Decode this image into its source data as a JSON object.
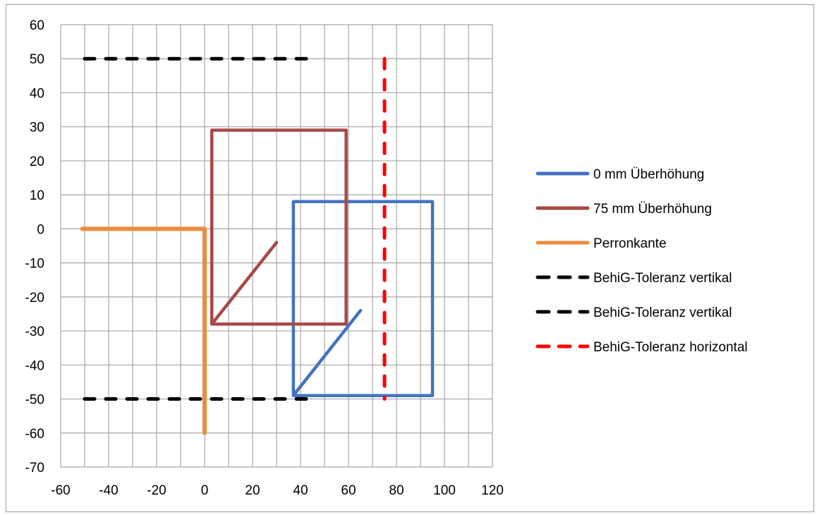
{
  "chart_data": {
    "type": "line",
    "title": "",
    "xlabel": "",
    "ylabel": "",
    "xlim": [
      -60,
      120
    ],
    "ylim": [
      -70,
      60
    ],
    "x_ticks": [
      -60,
      -40,
      -20,
      0,
      20,
      40,
      60,
      80,
      100,
      120
    ],
    "y_ticks": [
      60,
      50,
      40,
      30,
      20,
      10,
      0,
      -10,
      -20,
      -30,
      -40,
      -50,
      -60,
      -70
    ],
    "x_tick_labels": [
      "-60",
      "-40",
      "-20",
      "0",
      "20",
      "40",
      "60",
      "80",
      "100",
      "120"
    ],
    "y_tick_labels": [
      "60",
      "50",
      "40",
      "30",
      "20",
      "10",
      "0",
      "-10",
      "-20",
      "-30",
      "-40",
      "-50",
      "-60",
      "-70"
    ],
    "x_grid_step": 10,
    "y_grid_step": 10,
    "grid": true,
    "legend_position": "right",
    "series": [
      {
        "name": "0 mm Überhöhung",
        "color": "#4472c4",
        "dash": "solid",
        "points": [
          [
            65,
            -24
          ],
          [
            37,
            -49
          ],
          [
            37,
            8
          ],
          [
            95,
            8
          ],
          [
            95,
            -49
          ],
          [
            37,
            -49
          ]
        ]
      },
      {
        "name": "75 mm Überhöhung",
        "color": "#a84848",
        "dash": "solid",
        "points": [
          [
            30,
            -4
          ],
          [
            3,
            -28
          ],
          [
            3,
            29
          ],
          [
            59,
            29
          ],
          [
            59,
            -28
          ],
          [
            3,
            -28
          ]
        ]
      },
      {
        "name": "Perronkante",
        "color": "#ed8c3c",
        "dash": "solid",
        "points": [
          [
            -51,
            0
          ],
          [
            0,
            0
          ],
          [
            0,
            -60
          ]
        ]
      },
      {
        "name": "BehiG-Toleranz vertikal",
        "color": "#000000",
        "dash": "dashed",
        "points": [
          [
            -50,
            50
          ],
          [
            47,
            50
          ]
        ]
      },
      {
        "name": "BehiG-Toleranz vertikal",
        "color": "#000000",
        "dash": "dashed",
        "points": [
          [
            -50,
            -50
          ],
          [
            47,
            -50
          ]
        ]
      },
      {
        "name": "BehiG-Toleranz horizontal",
        "color": "#ff0000",
        "dash": "dashed",
        "points": [
          [
            75,
            50
          ],
          [
            75,
            -50
          ]
        ]
      }
    ]
  }
}
